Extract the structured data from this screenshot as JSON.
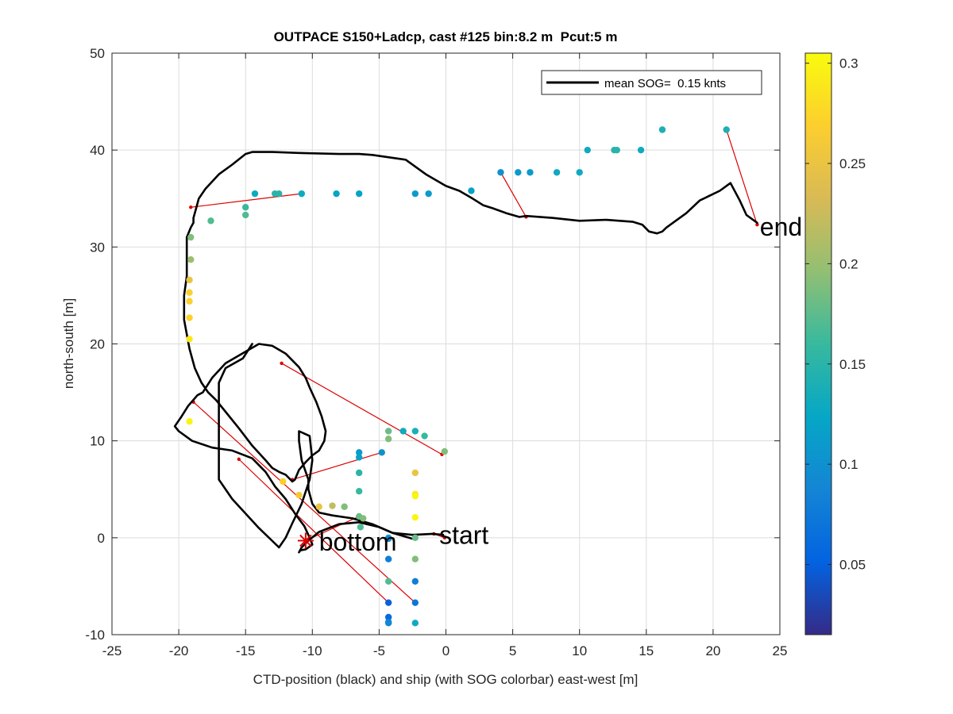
{
  "figure": {
    "background": "#ffffff"
  },
  "chart_data": {
    "type": "scatter",
    "title": "OUTPACE S150+Ladcp, cast #125 bin:8.2 m  Pcut:5 m",
    "xlabel": "CTD-position (black) and ship (with SOG colorbar) east-west [m]",
    "ylabel": "north-south [m]",
    "xlim": [
      -25,
      25
    ],
    "ylim": [
      -10,
      50
    ],
    "xticks": [
      -25,
      -20,
      -15,
      -10,
      -5,
      0,
      5,
      10,
      15,
      20,
      25
    ],
    "yticks": [
      -10,
      0,
      10,
      20,
      30,
      40,
      50
    ],
    "grid": true,
    "legend": {
      "position": "top-right",
      "entries": [
        {
          "label": "mean SOG=  0.15 knts",
          "color": "#000000",
          "style": "solid"
        }
      ]
    },
    "colorbar": {
      "range": [
        0.015,
        0.305
      ],
      "ticks": [
        0.05,
        0.1,
        0.15,
        0.2,
        0.25,
        0.3
      ],
      "ticklabels": [
        "0.05",
        "0.1",
        "0.15",
        "0.2",
        "0.25",
        "0.3"
      ],
      "colormap": "parula"
    },
    "annotations": [
      {
        "text": "start",
        "x": -0.5,
        "y": 0.2
      },
      {
        "text": "bottom",
        "x": -9.5,
        "y": -0.5
      },
      {
        "text": "end",
        "x": 23.5,
        "y": 32.0
      }
    ],
    "bottom_marker": {
      "x": -10.5,
      "y": -0.3
    },
    "ctd_track": {
      "color": "#000000",
      "x": [
        -0.2,
        -1,
        -2.5,
        -4,
        -5,
        -6.5,
        -8,
        -9.5,
        -10.3,
        -10.8,
        -11.0,
        -10.9,
        -10.5,
        -10.0,
        -10.2,
        -10.6,
        -11.3,
        -12.0,
        -12.8,
        -13.5,
        -14.5,
        -16.0,
        -17.5,
        -19.0,
        -20.0,
        -20.3,
        -19.8,
        -19.3,
        -18.6,
        -18.2,
        -17.5,
        -16.5,
        -15.0,
        -14.0,
        -13.0,
        -12.0,
        -11.0,
        -10.5,
        -10.2,
        -9.7,
        -9.3,
        -9.0,
        -9.1,
        -9.5,
        -10.0,
        -10.5,
        -11.0,
        -11.3,
        -11.5,
        -12.0,
        -12.5,
        -13.0,
        -13.5,
        -14.5,
        -15.5,
        -16.5,
        -17.2,
        -17.8,
        -18.3,
        -18.8,
        -19.2,
        -19.6,
        -19.6,
        -19.4,
        -19.4,
        -19.4,
        -19.1,
        -18.9,
        -18.9,
        -18.7,
        -18.5,
        -18.0,
        -17.0,
        -16.0,
        -15.0,
        -14.5,
        -13.0,
        -11.0,
        -8.0,
        -6.5,
        -5.5,
        -3.0,
        -1.5,
        0.0,
        1.0,
        2.0,
        2.8,
        3.5,
        4.5,
        5.5,
        6.0,
        8.0,
        10.0,
        12.0,
        14.0,
        14.7,
        15.2,
        15.8,
        16.2,
        16.5,
        17.0,
        18.0,
        19.0,
        20.5,
        21.3,
        22.0,
        22.5,
        23.3
      ],
      "y": [
        0.3,
        0.4,
        0.3,
        0.5,
        1.1,
        1.6,
        1.4,
        0.6,
        -0.3,
        -1.0,
        -1.5,
        -1.3,
        -1.2,
        -0.7,
        0,
        1.2,
        2.5,
        4.0,
        5.3,
        6.8,
        8.2,
        9.0,
        9.3,
        10.0,
        11.0,
        11.5,
        12.5,
        13.6,
        14.7,
        15.0,
        16.5,
        18.0,
        19.2,
        20.0,
        19.8,
        19.0,
        17.6,
        16.5,
        15.5,
        14.0,
        12.5,
        11.0,
        10.0,
        9.0,
        8.5,
        7.8,
        7.0,
        6.0,
        5.8,
        6.5,
        6.8,
        7.2,
        8.0,
        9.5,
        11.3,
        13.0,
        14.2,
        15.0,
        16.0,
        17.5,
        19.5,
        22.5,
        25.0,
        27.0,
        29.5,
        31.0,
        32.0,
        32.5,
        33.0,
        34.0,
        35.0,
        36.0,
        37.5,
        38.5,
        39.6,
        39.8,
        39.8,
        39.7,
        39.6,
        39.6,
        39.5,
        39.0,
        37.5,
        36.3,
        35.8,
        35.0,
        34.3,
        34.0,
        33.5,
        33.1,
        33.2,
        33.0,
        32.7,
        32.8,
        32.6,
        32.3,
        31.6,
        31.4,
        31.6,
        32.0,
        32.5,
        33.5,
        34.8,
        35.8,
        36.6,
        34.8,
        33.3,
        32.5
      ],
      "x2": [
        -2.5,
        -4.0,
        -5.5,
        -7.0,
        -8.5,
        -9.5,
        -10.0,
        -10.3,
        -10.3,
        -10.8,
        -11.0,
        -11.0,
        -10.2,
        -10.0,
        -10.2,
        -10.8,
        -11.5,
        -12.0,
        -12.5,
        -14.0,
        -16.0,
        -17.0,
        -17.0,
        -17.0,
        -16.5,
        -15.2,
        -14.5
      ],
      "y2": [
        -0.1,
        0.5,
        1.4,
        2.0,
        2.3,
        2.6,
        3.5,
        5.0,
        6.0,
        8.0,
        10.0,
        11.0,
        10.5,
        8.0,
        6.0,
        3.5,
        1.5,
        0.0,
        -1.0,
        1.0,
        4.0,
        6.0,
        10.0,
        16.0,
        17.5,
        18.5,
        20.0
      ]
    },
    "ship_points": {
      "x": [
        -19.2,
        -19.2,
        -19.2,
        -19.2,
        -19.2,
        -19.1,
        -19.1,
        -17.6,
        -15.0,
        -15.0,
        -14.3,
        -12.8,
        -12.5,
        -10.8,
        -8.2,
        -6.5,
        -2.3,
        -1.3,
        1.9,
        4.1,
        5.4,
        6.3,
        8.3,
        10.0,
        10.6,
        12.6,
        12.8,
        14.6,
        16.2,
        21.0,
        -19.2,
        -12.2,
        -11.0,
        -9.5,
        -8.5,
        -7.6,
        -6.5,
        -6.5,
        -6.5,
        -6.5,
        -6.5,
        -6.4,
        -6.2,
        -4.3,
        -4.3,
        -4.3,
        -4.3,
        -4.3,
        -4.3,
        -4.3,
        -4.3,
        -4.3,
        -4.3,
        -3.2,
        -2.3,
        -2.3,
        -2.3,
        -2.3,
        -2.3,
        -2.3,
        -2.3,
        -2.3,
        -2.3,
        -2.3,
        -1.6,
        -0.1,
        -4.8
      ],
      "y": [
        20.5,
        22.7,
        24.4,
        25.3,
        26.6,
        28.7,
        31.0,
        32.7,
        33.3,
        34.1,
        35.5,
        35.5,
        35.5,
        35.5,
        35.5,
        35.5,
        35.5,
        35.5,
        35.8,
        37.7,
        37.7,
        37.7,
        37.7,
        37.7,
        40.0,
        40.0,
        40.0,
        40.0,
        42.1,
        42.1,
        12.0,
        5.8,
        4.4,
        3.2,
        3.3,
        3.2,
        8.8,
        8.3,
        6.7,
        4.8,
        2.2,
        1.1,
        2.0,
        11.0,
        10.2,
        0.0,
        -2.2,
        -4.5,
        -6.7,
        -8.2,
        -8.7,
        -8.8,
        -0.1,
        11.0,
        11.0,
        6.7,
        4.5,
        4.3,
        2.1,
        0.0,
        -2.2,
        -4.5,
        -6.7,
        -8.8,
        10.5,
        8.9,
        8.8
      ],
      "sog": [
        0.29,
        0.27,
        0.27,
        0.27,
        0.25,
        0.2,
        0.19,
        0.17,
        0.17,
        0.16,
        0.13,
        0.15,
        0.15,
        0.13,
        0.12,
        0.12,
        0.11,
        0.11,
        0.12,
        0.1,
        0.11,
        0.11,
        0.13,
        0.13,
        0.13,
        0.15,
        0.15,
        0.13,
        0.14,
        0.14,
        0.3,
        0.27,
        0.26,
        0.25,
        0.22,
        0.19,
        0.11,
        0.12,
        0.15,
        0.16,
        0.18,
        0.17,
        0.19,
        0.18,
        0.19,
        0.14,
        0.08,
        0.17,
        0.05,
        0.06,
        0.08,
        0.09,
        0.09,
        0.13,
        0.14,
        0.25,
        0.29,
        0.3,
        0.3,
        0.18,
        0.19,
        0.08,
        0.07,
        0.13,
        0.16,
        0.19,
        0.1
      ]
    },
    "ship_ctd_links": {
      "color": "#dd0000",
      "segments": [
        {
          "x": [
            -19.1,
            -10.8
          ],
          "y": [
            34.1,
            35.5
          ]
        },
        {
          "x": [
            4.1,
            6.0
          ],
          "y": [
            37.7,
            33.1
          ]
        },
        {
          "x": [
            21.0,
            23.3
          ],
          "y": [
            42.1,
            32.3
          ]
        },
        {
          "x": [
            -12.3,
            -0.3
          ],
          "y": [
            18.0,
            8.6
          ]
        },
        {
          "x": [
            -18.9,
            -2.3
          ],
          "y": [
            14.0,
            -6.7
          ]
        },
        {
          "x": [
            -15.5,
            -4.3
          ],
          "y": [
            8.1,
            -6.7
          ]
        },
        {
          "x": [
            -11.5,
            -4.8
          ],
          "y": [
            6.0,
            8.8
          ]
        },
        {
          "x": [
            -10.5,
            -6.5
          ],
          "y": [
            -0.3,
            2.2
          ]
        },
        {
          "x": [
            -0.9,
            -0.1
          ],
          "y": [
            0.4,
            0.0
          ]
        }
      ]
    }
  }
}
